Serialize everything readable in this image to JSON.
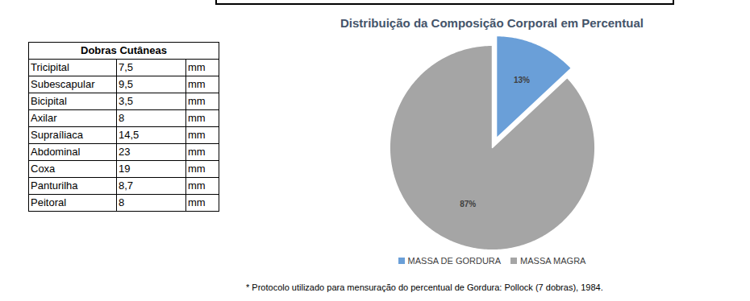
{
  "table": {
    "title": "Dobras Cutâneas",
    "rows": [
      [
        "Tricipital",
        "7,5",
        "mm"
      ],
      [
        "Subescapular",
        "9,5",
        "mm"
      ],
      [
        "Bicipital",
        "3,5",
        "mm"
      ],
      [
        "Axilar",
        "8",
        "mm"
      ],
      [
        "Supraíliaca",
        "14,5",
        "mm"
      ],
      [
        "Abdominal",
        "23",
        "mm"
      ],
      [
        "Coxa",
        "19",
        "mm"
      ],
      [
        "Panturilha",
        "8,7",
        "mm"
      ],
      [
        "Peitoral",
        "8",
        "mm"
      ]
    ]
  },
  "chart_data": {
    "type": "pie",
    "title": "Distribuição da Composição Corporal em Percentual",
    "categories": [
      "MASSA DE GORDURA",
      "MASSA MAGRA"
    ],
    "values": [
      13,
      87
    ],
    "value_labels": [
      "13%",
      "87%"
    ],
    "colors": [
      "#6A9FD8",
      "#A5A5A5"
    ],
    "data_labels": true,
    "legend": "bottom"
  },
  "footnote": "* Protocolo utilizado para mensuração do percentual de Gordura: Pollock (7 dobras), 1984."
}
